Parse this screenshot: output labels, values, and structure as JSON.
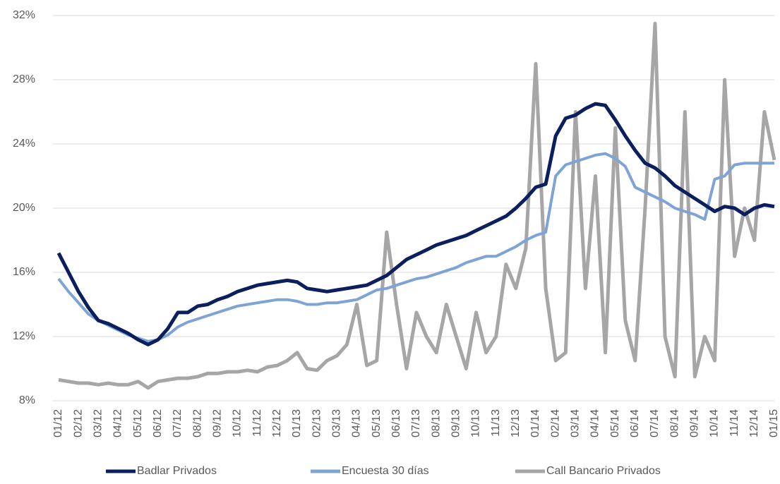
{
  "chart_data": {
    "type": "line",
    "categories": [
      "01/12",
      null,
      "02/12",
      null,
      "03/12",
      null,
      "04/12",
      null,
      "05/12",
      null,
      "06/12",
      null,
      "07/12",
      null,
      "08/12",
      null,
      "09/12",
      null,
      "10/12",
      null,
      "11/12",
      null,
      "12/12",
      null,
      "01/13",
      null,
      "02/13",
      null,
      "03/13",
      null,
      "04/13",
      null,
      "05/13",
      null,
      "06/13",
      null,
      "07/13",
      null,
      "08/13",
      null,
      "09/13",
      null,
      "10/13",
      null,
      "11/13",
      null,
      "12/13",
      null,
      "01/14",
      null,
      "02/14",
      null,
      "03/14",
      null,
      "04/14",
      null,
      "05/14",
      null,
      "06/14",
      null,
      "07/14",
      null,
      "08/14",
      null,
      "09/14",
      null,
      "10/14",
      null,
      "11/14",
      null,
      "12/14",
      null,
      "01/15"
    ],
    "series": [
      {
        "name": "Badlar Privados",
        "color": "#0b1f5e",
        "values": [
          17.2,
          16.0,
          14.8,
          13.8,
          13.0,
          12.8,
          12.5,
          12.2,
          11.8,
          11.5,
          11.8,
          12.5,
          13.5,
          13.5,
          13.9,
          14.0,
          14.3,
          14.5,
          14.8,
          15.0,
          15.2,
          15.3,
          15.4,
          15.5,
          15.4,
          15.0,
          14.9,
          14.8,
          14.9,
          15.0,
          15.1,
          15.2,
          15.5,
          15.8,
          16.3,
          16.8,
          17.1,
          17.4,
          17.7,
          17.9,
          18.1,
          18.3,
          18.6,
          18.9,
          19.2,
          19.5,
          20.0,
          20.6,
          21.3,
          21.5,
          24.5,
          25.6,
          25.8,
          26.2,
          26.5,
          26.4,
          25.5,
          24.5,
          23.6,
          22.8,
          22.5,
          22.0,
          21.4,
          21.0,
          20.6,
          20.2,
          19.8,
          20.1,
          20.0,
          19.6,
          20.0,
          20.2,
          20.1
        ]
      },
      {
        "name": "Encuesta 30 días",
        "color": "#7ea4d6",
        "values": [
          15.6,
          14.8,
          14.1,
          13.4,
          13.0,
          12.7,
          12.4,
          12.1,
          11.9,
          11.7,
          11.8,
          12.1,
          12.6,
          12.9,
          13.1,
          13.3,
          13.5,
          13.7,
          13.9,
          14.0,
          14.1,
          14.2,
          14.3,
          14.3,
          14.2,
          14.0,
          14.0,
          14.1,
          14.1,
          14.2,
          14.3,
          14.6,
          14.9,
          15.0,
          15.2,
          15.4,
          15.6,
          15.7,
          15.9,
          16.1,
          16.3,
          16.6,
          16.8,
          17.0,
          17.0,
          17.3,
          17.6,
          18.0,
          18.3,
          18.5,
          22.0,
          22.7,
          22.9,
          23.1,
          23.3,
          23.4,
          23.1,
          22.6,
          21.3,
          21.0,
          20.7,
          20.4,
          20.0,
          19.8,
          19.6,
          19.3,
          21.8,
          22.0,
          22.7,
          22.8,
          22.8,
          22.8,
          22.8
        ]
      },
      {
        "name": "Call Bancario Privados",
        "color": "#a6a6a6",
        "values": [
          9.3,
          9.2,
          9.1,
          9.1,
          9.0,
          9.1,
          9.0,
          9.0,
          9.2,
          8.8,
          9.2,
          9.3,
          9.4,
          9.4,
          9.5,
          9.7,
          9.7,
          9.8,
          9.8,
          9.9,
          9.8,
          10.1,
          10.2,
          10.5,
          11.0,
          10.0,
          9.9,
          10.5,
          10.8,
          11.5,
          14.0,
          10.2,
          10.5,
          18.5,
          14.0,
          10.0,
          13.5,
          12.0,
          11.0,
          14.0,
          12.0,
          10.0,
          13.5,
          11.0,
          12.0,
          16.5,
          15.0,
          17.5,
          29.0,
          15.0,
          10.5,
          11.0,
          26.0,
          15.0,
          22.0,
          11.0,
          25.0,
          13.0,
          10.5,
          20.0,
          31.5,
          12.0,
          9.5,
          26.0,
          9.5,
          12.0,
          10.5,
          28.0,
          17.0,
          20.0,
          18.0,
          26.0,
          23.0
        ]
      }
    ],
    "ylim": [
      8,
      32
    ],
    "yticks": [
      {
        "value": 8,
        "label": "8%"
      },
      {
        "value": 12,
        "label": "12%"
      },
      {
        "value": 16,
        "label": "16%"
      },
      {
        "value": 20,
        "label": "20%"
      },
      {
        "value": 24,
        "label": "24%"
      },
      {
        "value": 28,
        "label": "28%"
      },
      {
        "value": 32,
        "label": "32%"
      }
    ],
    "grid": true,
    "legend": "bottom"
  }
}
